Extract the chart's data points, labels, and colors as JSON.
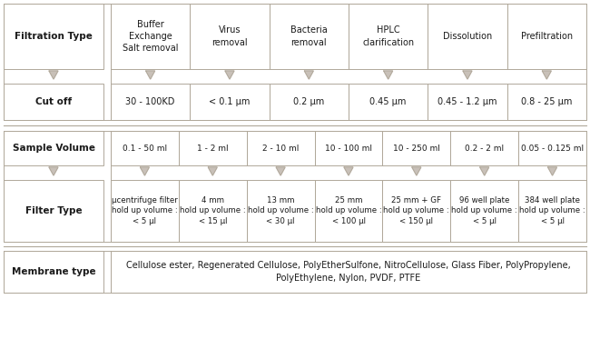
{
  "filtration_types": [
    "Buffer\nExchange\nSalt removal",
    "Virus\nremoval",
    "Bacteria\nremoval",
    "HPLC\nclarification",
    "Dissolution",
    "Prefiltration"
  ],
  "cut_offs": [
    "30 - 100KD",
    "< 0.1 μm",
    "0.2 μm",
    "0.45 μm",
    "0.45 - 1.2 μm",
    "0.8 - 25 μm"
  ],
  "sample_volumes": [
    "0.1 - 50 ml",
    "1 - 2 ml",
    "2 - 10 ml",
    "10 - 100 ml",
    "10 - 250 ml",
    "0.2 - 2 ml",
    "0.05 - 0.125 ml"
  ],
  "filter_types": [
    "μcentrifuge filter\nhold up volume :\n< 5 μl",
    "4 mm\nhold up volume :\n< 15 μl",
    "13 mm\nhold up volume :\n< 30 μl",
    "25 mm\nhold up volume :\n< 100 μl",
    "25 mm + GF\nhold up volume :\n< 150 μl",
    "96 well plate\nhold up volume :\n< 5 μl",
    "384 well plate\nhold up volume :\n< 5 μl"
  ],
  "membrane_text": "Cellulose ester, Regenerated Cellulose, PolyEtherSulfone, NitroCellulose, Glass Fiber, PolyPropylene,\nPolyEthylene, Nylon, PVDF, PTFE",
  "row_labels": [
    "Filtration Type",
    "Cut off",
    "Sample Volume",
    "Filter Type",
    "Membrane type"
  ],
  "bg_color": "#ffffff",
  "border_color": "#b0a89a",
  "text_color": "#1a1a1a",
  "arrow_color": "#c8c0b8",
  "arrow_border_color": "#b0a89a",
  "label_fontsize": 7.5,
  "data_fontsize": 7.0,
  "filter_fontsize": 6.2,
  "mem_fontsize": 7.0
}
